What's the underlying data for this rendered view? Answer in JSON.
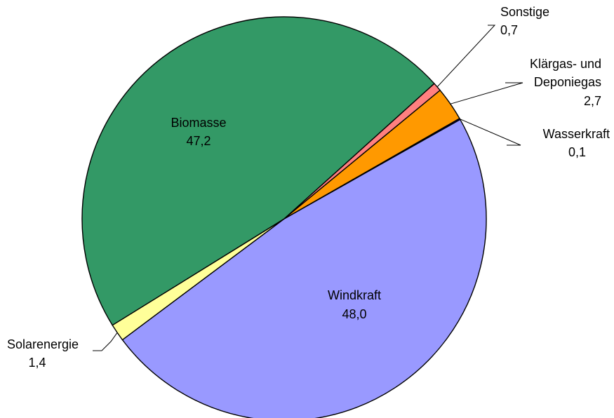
{
  "chart_data": {
    "type": "pie",
    "title": "",
    "slices": [
      {
        "name": "Windkraft",
        "value": 48.0,
        "label": "48,0",
        "color": "#9999ff"
      },
      {
        "name": "Solarenergie",
        "value": 1.4,
        "label": "1,4",
        "color": "#ffff99"
      },
      {
        "name": "Biomasse",
        "value": 47.2,
        "label": "47,2",
        "color": "#339966"
      },
      {
        "name": "Sonstige",
        "value": 0.7,
        "label": "0,7",
        "color": "#ff8080"
      },
      {
        "name": "Klärgas- und Deponiegas",
        "value": 2.7,
        "label": "2,7",
        "color": "#ff9900",
        "name_lines": [
          "Klärgas- und",
          "Deponiegas"
        ]
      },
      {
        "name": "Wasserkraft",
        "value": 0.1,
        "label": "0,1",
        "color": "#0000ff"
      }
    ],
    "start_slice": "Wasserkraft",
    "direction": "clockwise",
    "labels": "outside-with-leaders-for-small-slices"
  }
}
